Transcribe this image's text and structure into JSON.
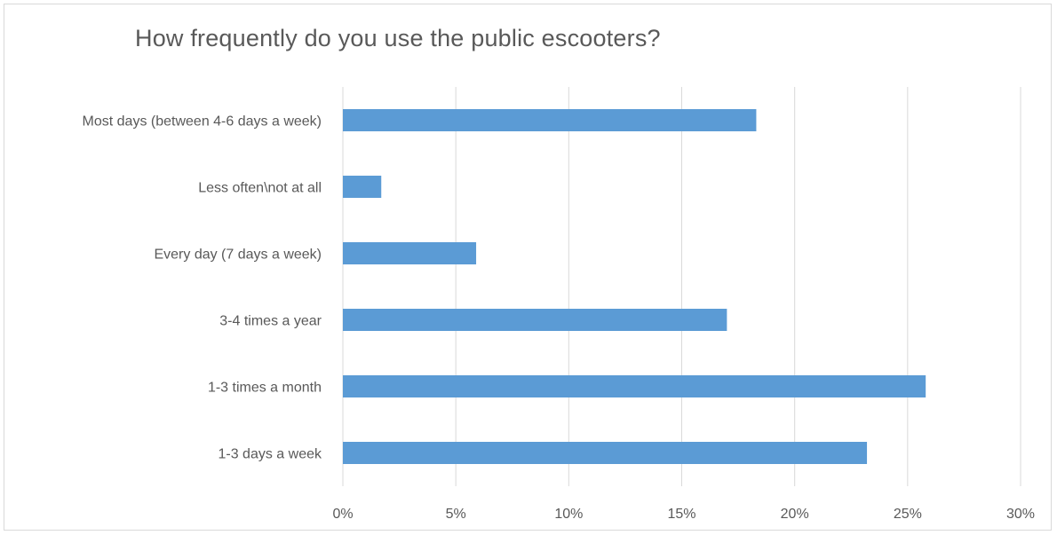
{
  "chart_data": {
    "type": "bar",
    "orientation": "horizontal",
    "title": "How frequently do you use the public escooters?",
    "categories": [
      "Most days (between 4-6 days a week)",
      "Less often\\not at all",
      "Every day (7 days a week)",
      "3-4 times a year",
      "1-3 times a month",
      "1-3 days a week"
    ],
    "values": [
      0.183,
      0.017,
      0.059,
      0.17,
      0.258,
      0.232
    ],
    "xlim": [
      0,
      0.3
    ],
    "ticks": [
      0,
      0.05,
      0.1,
      0.15,
      0.2,
      0.25,
      0.3
    ],
    "tick_labels": [
      "0%",
      "5%",
      "10%",
      "15%",
      "20%",
      "25%",
      "30%"
    ],
    "grid": true,
    "legend": "none",
    "bar_color": "#5b9bd5",
    "grid_color": "#d9d9d9"
  }
}
